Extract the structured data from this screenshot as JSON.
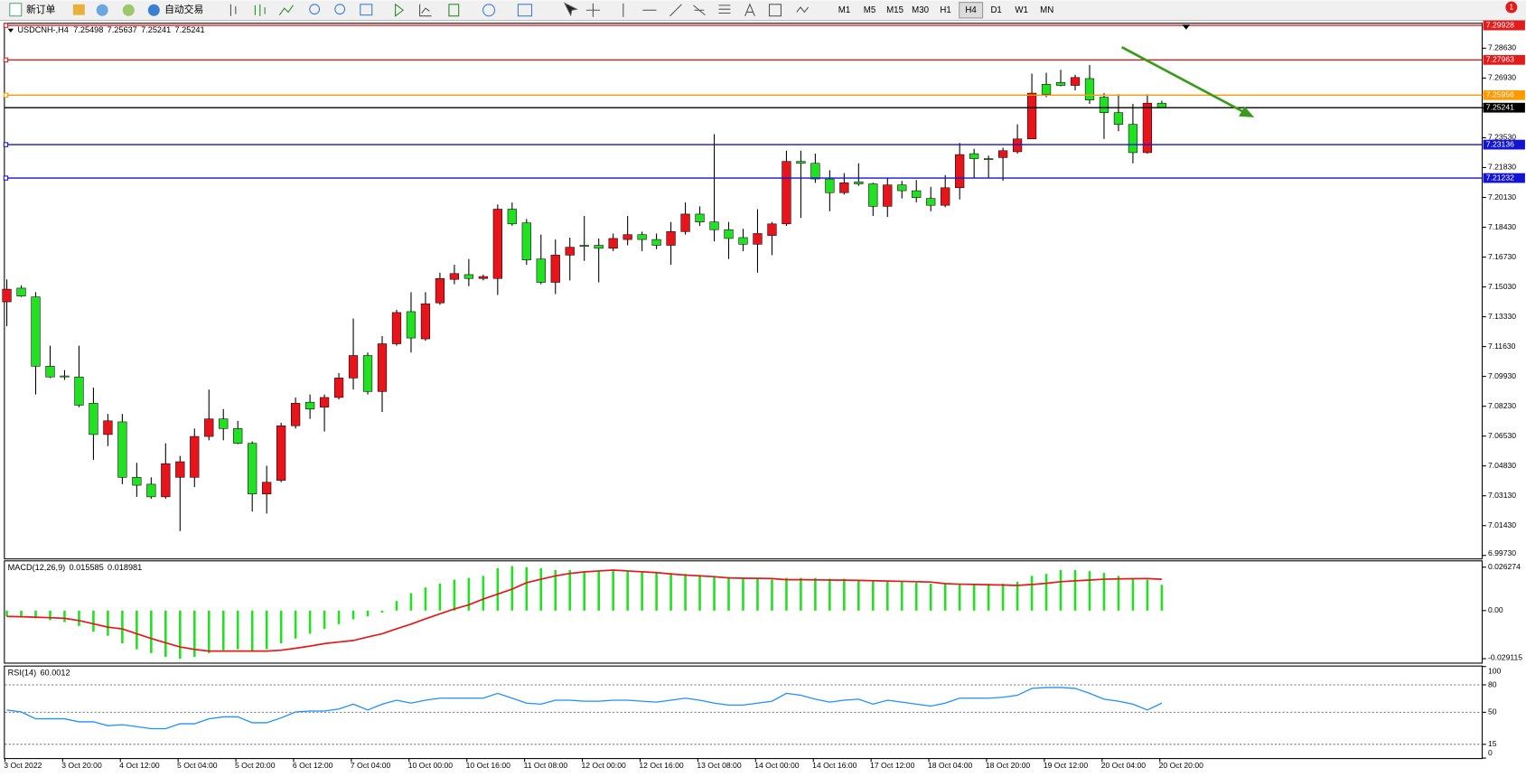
{
  "toolbar": {
    "new_order": "新订单",
    "auto_trading": "自动交易",
    "timeframes": [
      "M1",
      "M5",
      "M15",
      "M30",
      "H1",
      "H4",
      "D1",
      "W1",
      "MN"
    ],
    "badge": "1"
  },
  "chart_data": [
    {
      "type": "candlestick",
      "symbol": "USDCNH-,H4",
      "categories": [
        "3 Oct 2022",
        null,
        null,
        null,
        "3 Oct 20:00",
        null,
        null,
        null,
        "4 Oct 12:00",
        null,
        null,
        null,
        "5 Oct 04:00",
        null,
        null,
        null,
        "5 Oct 20:00",
        null,
        null,
        null,
        "6 Oct 12:00",
        null,
        null,
        null,
        "7 Oct 04:00",
        null,
        null,
        null,
        "10 Oct 00:00",
        null,
        null,
        null,
        "10 Oct 16:00",
        null,
        null,
        null,
        "11 Oct 08:00",
        null,
        null,
        null,
        "12 Oct 00:00",
        null,
        null,
        null,
        "12 Oct 16:00",
        null,
        null,
        null,
        "13 Oct 08:00",
        null,
        null,
        null,
        "14 Oct 00:00",
        null,
        null,
        null,
        "14 Oct 16:00",
        null,
        null,
        null,
        "17 Oct 12:00",
        null,
        null,
        null,
        "18 Oct 04:00",
        null,
        null,
        null,
        "18 Oct 20:00",
        null,
        null,
        null,
        "19 Oct 12:00",
        null,
        null,
        null,
        "20 Oct 04:00",
        null,
        null,
        null,
        "20 Oct 20:00"
      ],
      "open": [
        7.1418,
        7.1496,
        7.1446,
        7.1051,
        7.0996,
        7.099,
        7.084,
        7.0662,
        7.0734,
        7.0418,
        7.0379,
        7.0307,
        7.0418,
        7.0418,
        7.0651,
        7.0751,
        7.0696,
        7.0612,
        7.0323,
        7.0401,
        7.0712,
        7.0846,
        7.0818,
        7.0873,
        7.0984,
        7.1112,
        7.0907,
        7.1179,
        7.1362,
        7.1207,
        7.1412,
        7.1546,
        7.1573,
        7.1551,
        7.1551,
        7.1946,
        7.1868,
        7.1662,
        7.1529,
        7.1684,
        7.174,
        7.174,
        7.1723,
        7.1773,
        7.1801,
        7.1773,
        7.174,
        7.1818,
        7.1918,
        7.1873,
        7.1829,
        7.1784,
        7.1746,
        7.1796,
        7.1862,
        7.2218,
        7.2207,
        7.2118,
        7.204,
        7.2101,
        7.209,
        7.1962,
        7.2084,
        7.2051,
        7.2007,
        7.1968,
        7.2068,
        7.2262,
        7.2234,
        7.224,
        7.2273,
        7.2346,
        7.2657,
        7.2668,
        7.2651,
        7.269,
        7.2584,
        7.2496,
        7.2429,
        7.2268,
        7.25498
      ],
      "high": [
        7.1546,
        7.1512,
        7.1473,
        7.1168,
        7.1029,
        7.1168,
        7.0929,
        7.0779,
        7.0779,
        7.0501,
        7.0418,
        7.0612,
        7.054,
        7.0696,
        7.0918,
        7.0807,
        7.074,
        7.0623,
        7.0484,
        7.0729,
        7.0873,
        7.089,
        7.089,
        7.1012,
        7.1323,
        7.1129,
        7.1223,
        7.1373,
        7.1473,
        7.1473,
        7.1584,
        7.1629,
        7.1662,
        7.1573,
        7.1973,
        7.1984,
        7.189,
        7.1801,
        7.1773,
        7.1784,
        7.1907,
        7.1779,
        7.1807,
        7.1907,
        7.1818,
        7.1807,
        7.1873,
        7.1984,
        7.1962,
        7.2373,
        7.1873,
        7.1834,
        7.1946,
        7.1873,
        7.2279,
        7.2279,
        7.2262,
        7.2168,
        7.2151,
        7.2207,
        7.2096,
        7.2123,
        7.2107,
        7.2112,
        7.2073,
        7.214,
        7.2323,
        7.229,
        7.2251,
        7.2296,
        7.2429,
        7.2718,
        7.2723,
        7.274,
        7.2712,
        7.2768,
        7.2607,
        7.2601,
        7.2546,
        7.2601,
        7.25637
      ],
      "low": [
        7.1279,
        7.1446,
        7.089,
        7.0984,
        7.0973,
        7.0818,
        7.0518,
        7.0596,
        7.0379,
        7.0307,
        7.0296,
        7.0296,
        7.0112,
        7.0362,
        7.0629,
        7.0629,
        7.0607,
        7.0223,
        7.0212,
        7.039,
        7.0696,
        7.0751,
        7.0679,
        7.0862,
        7.0918,
        7.089,
        7.079,
        7.1168,
        7.1129,
        7.1196,
        7.1401,
        7.1518,
        7.1507,
        7.154,
        7.1457,
        7.1851,
        7.1629,
        7.1518,
        7.1462,
        7.154,
        7.1651,
        7.1529,
        7.1707,
        7.174,
        7.1707,
        7.1718,
        7.1629,
        7.1801,
        7.1851,
        7.1762,
        7.1662,
        7.1707,
        7.1584,
        7.1684,
        7.1851,
        7.1896,
        7.2096,
        7.1934,
        7.2029,
        7.2079,
        7.1907,
        7.1901,
        7.2007,
        7.1984,
        7.1934,
        7.1957,
        7.2001,
        7.2123,
        7.2123,
        7.2107,
        7.2262,
        7.2346,
        7.2584,
        7.2646,
        7.2623,
        7.2546,
        7.2346,
        7.239,
        7.2207,
        7.2262,
        7.25241
      ],
      "close": [
        7.149,
        7.1451,
        7.1051,
        7.099,
        7.099,
        7.0829,
        7.0662,
        7.074,
        7.0418,
        7.0373,
        7.0307,
        7.0496,
        7.0507,
        7.0651,
        7.0751,
        7.0696,
        7.0612,
        7.0323,
        7.039,
        7.0712,
        7.084,
        7.0807,
        7.0873,
        7.0984,
        7.1112,
        7.0907,
        7.1179,
        7.1357,
        7.1212,
        7.1407,
        7.1551,
        7.1579,
        7.1551,
        7.1562,
        7.1946,
        7.1862,
        7.1657,
        7.1529,
        7.1684,
        7.1729,
        7.1734,
        7.1723,
        7.1779,
        7.1801,
        7.1773,
        7.174,
        7.1818,
        7.1918,
        7.1873,
        7.1829,
        7.1779,
        7.1746,
        7.1807,
        7.1862,
        7.2218,
        7.2207,
        7.2118,
        7.204,
        7.2096,
        7.209,
        7.1962,
        7.2084,
        7.2051,
        7.2012,
        7.1968,
        7.2068,
        7.2257,
        7.2234,
        7.2229,
        7.2279,
        7.2346,
        7.2607,
        7.2601,
        7.2651,
        7.2696,
        7.2568,
        7.2496,
        7.2429,
        7.2268,
        7.255,
        7.25241
      ],
      "up_color": "#e8141b",
      "down_color": "#22e022",
      "bid_color": "#000000",
      "ylim": [
        6.9956,
        7.3002
      ],
      "yticks": [
        {
          "value": 7.2863,
          "label": "7.28630"
        },
        {
          "value": 7.2693,
          "label": "7.26930"
        },
        {
          "value": 7.2523,
          "label": "7.25230"
        },
        {
          "value": 7.2353,
          "label": "7.23530"
        },
        {
          "value": 7.2183,
          "label": "7.21830"
        },
        {
          "value": 7.2013,
          "label": "7.20130"
        },
        {
          "value": 7.1843,
          "label": "7.18430"
        },
        {
          "value": 7.1673,
          "label": "7.16730"
        },
        {
          "value": 7.1503,
          "label": "7.15030"
        },
        {
          "value": 7.1333,
          "label": "7.13330"
        },
        {
          "value": 7.1163,
          "label": "7.11630"
        },
        {
          "value": 7.0993,
          "label": "7.09930"
        },
        {
          "value": 7.0823,
          "label": "7.08230"
        },
        {
          "value": 7.0653,
          "label": "7.06530"
        },
        {
          "value": 7.0483,
          "label": "7.04830"
        },
        {
          "value": 7.0313,
          "label": "7.03130"
        },
        {
          "value": 7.0143,
          "label": "7.01430"
        },
        {
          "value": 6.9973,
          "label": "6.99730"
        }
      ],
      "levels": [
        {
          "value": 7.29928,
          "color": "#e31b1b"
        },
        {
          "value": 7.27963,
          "color": "#e31b1b"
        },
        {
          "value": 7.25956,
          "color": "#ff9900"
        },
        {
          "value": 7.23136,
          "color": "#1414d2"
        },
        {
          "value": 7.21232,
          "color": "#1414d2"
        }
      ]
    },
    {
      "type": "macd",
      "title": "MACD(12,26,9)",
      "histogram": [
        -0.0035,
        -0.0035,
        -0.0047,
        -0.0058,
        -0.007,
        -0.0093,
        -0.0128,
        -0.0152,
        -0.0198,
        -0.0234,
        -0.0257,
        -0.028,
        -0.0292,
        -0.028,
        -0.0257,
        -0.0239,
        -0.0234,
        -0.0245,
        -0.0234,
        -0.0198,
        -0.0169,
        -0.014,
        -0.0111,
        -0.0082,
        -0.0053,
        -0.0035,
        -0.0012,
        0.0058,
        0.0105,
        0.014,
        0.0163,
        0.0187,
        0.0198,
        0.021,
        0.0257,
        0.0269,
        0.0263,
        0.0257,
        0.0245,
        0.0245,
        0.0239,
        0.0239,
        0.0239,
        0.0239,
        0.0234,
        0.0234,
        0.0228,
        0.0222,
        0.0216,
        0.021,
        0.0204,
        0.0198,
        0.0193,
        0.0187,
        0.0198,
        0.0198,
        0.0198,
        0.0193,
        0.0193,
        0.0187,
        0.0181,
        0.0181,
        0.0175,
        0.0169,
        0.0163,
        0.0163,
        0.0163,
        0.0163,
        0.0163,
        0.0163,
        0.0175,
        0.021,
        0.0222,
        0.0245,
        0.0245,
        0.0239,
        0.0228,
        0.021,
        0.0193,
        0.0187,
        0.015585
      ],
      "signal": [
        -0.0035,
        -0.0037,
        -0.004,
        -0.0043,
        -0.0047,
        -0.006,
        -0.008,
        -0.01,
        -0.0111,
        -0.014,
        -0.0169,
        -0.0195,
        -0.022,
        -0.0235,
        -0.0245,
        -0.0245,
        -0.0245,
        -0.0245,
        -0.0245,
        -0.024,
        -0.0228,
        -0.0215,
        -0.02,
        -0.019,
        -0.0181,
        -0.016,
        -0.014,
        -0.011,
        -0.0082,
        -0.005,
        -0.002,
        0.001,
        0.0035,
        0.007,
        0.01,
        0.013,
        0.0169,
        0.019,
        0.021,
        0.0225,
        0.0234,
        0.024,
        0.0245,
        0.024,
        0.0235,
        0.023,
        0.0222,
        0.0215,
        0.021,
        0.0205,
        0.0198,
        0.0196,
        0.0195,
        0.0194,
        0.0187,
        0.0187,
        0.0186,
        0.0185,
        0.0184,
        0.0183,
        0.0181,
        0.0179,
        0.0177,
        0.0175,
        0.0173,
        0.0163,
        0.016,
        0.0158,
        0.0156,
        0.0155,
        0.0152,
        0.0158,
        0.0165,
        0.0175,
        0.018,
        0.0185,
        0.019,
        0.0192,
        0.0193,
        0.0194,
        0.018981
      ],
      "histogram_color": "#22e022",
      "signal_color": "#e31b1b",
      "ylim": [
        -0.0315,
        0.0298
      ],
      "yticks": [
        0.026274,
        {
          "value": 0,
          "label": "0.00"
        },
        -0.029115
      ]
    },
    {
      "type": "line",
      "title": "RSI(14)",
      "values": [
        52.5,
        50.4,
        42.9,
        42.9,
        42.9,
        39.6,
        39.6,
        35.4,
        36.4,
        34.3,
        32.1,
        32.1,
        37.5,
        37.5,
        42.9,
        45.0,
        45.0,
        38.6,
        38.6,
        43.9,
        50.4,
        51.4,
        51.4,
        53.6,
        58.9,
        52.5,
        58.9,
        63.2,
        60.0,
        63.2,
        65.4,
        65.4,
        65.4,
        65.4,
        70.7,
        65.4,
        60.0,
        58.9,
        63.2,
        63.2,
        62.1,
        62.1,
        63.2,
        63.2,
        62.1,
        61.1,
        63.2,
        65.4,
        63.2,
        60.0,
        57.9,
        57.9,
        60.0,
        62.1,
        70.7,
        68.6,
        64.3,
        61.1,
        63.2,
        64.3,
        58.9,
        63.2,
        61.1,
        58.9,
        56.8,
        60.0,
        65.4,
        65.4,
        65.4,
        66.4,
        68.6,
        76.1,
        77.1,
        77.1,
        76.1,
        70.7,
        64.3,
        62.1,
        58.9,
        52.5,
        60.0012
      ],
      "color": "#1e90ff",
      "ylim": [
        0,
        100
      ],
      "yticks": [
        100,
        80,
        50,
        15,
        0
      ],
      "levels": [
        80,
        50,
        15
      ]
    }
  ]
}
